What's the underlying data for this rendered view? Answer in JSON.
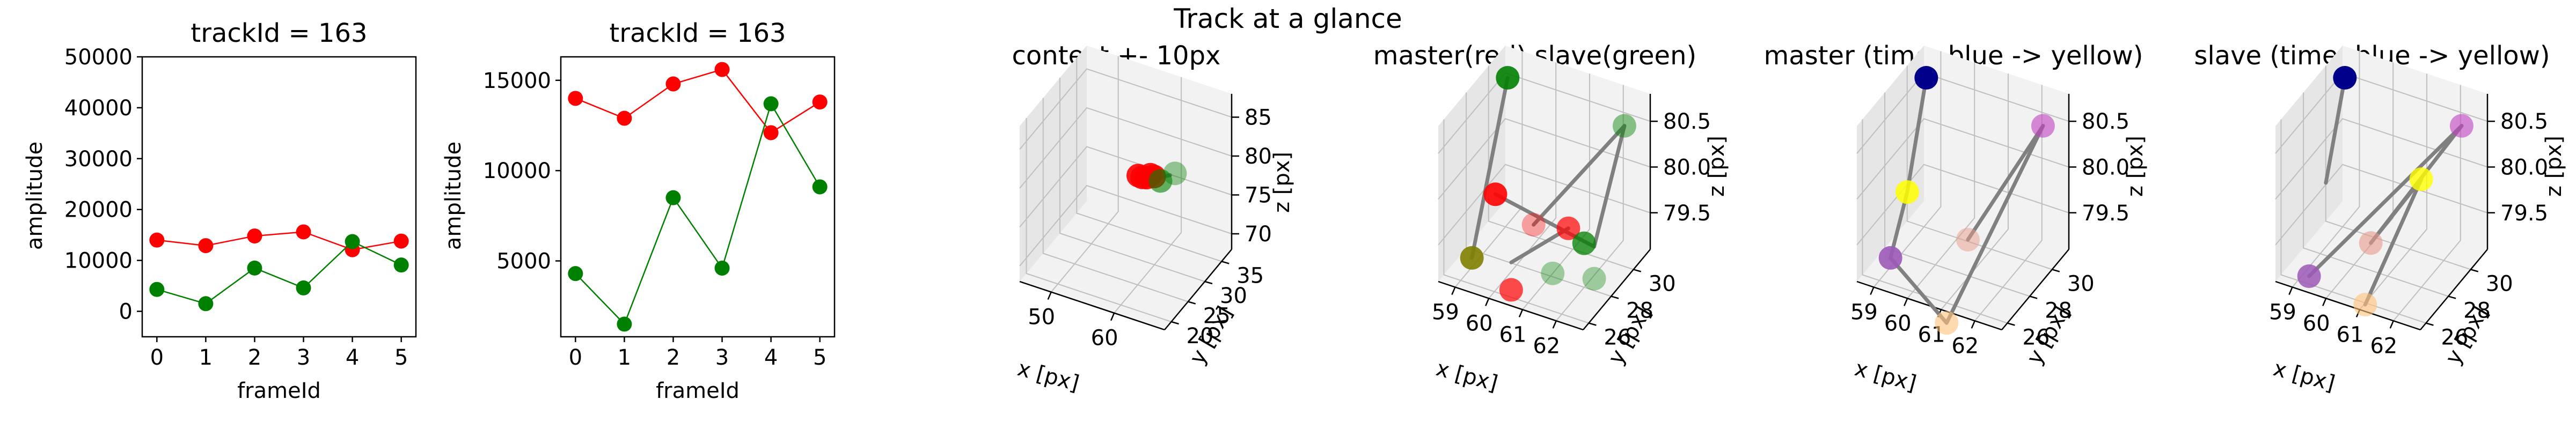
{
  "figure": {
    "title": "Track at a glance"
  },
  "colors": {
    "master": "#ff0000",
    "slave": "#008000",
    "link": "#808080",
    "pane": "#f2f2f2",
    "pane_dark": "#e6e6e6"
  },
  "chart_data": [
    {
      "type": "line",
      "title": "trackId = 163",
      "xlabel": "frameId",
      "ylabel": "amplitude",
      "x": [
        0,
        1,
        2,
        3,
        4,
        5
      ],
      "xticks": [
        "0",
        "1",
        "2",
        "3",
        "4",
        "5"
      ],
      "yticks": [
        "0",
        "10000",
        "20000",
        "30000",
        "40000",
        "50000"
      ],
      "xlim": [
        -0.3,
        5.3
      ],
      "ylim": [
        -5000,
        50000
      ],
      "series": [
        {
          "color": "#ff0000",
          "values": [
            14000,
            12900,
            14800,
            15600,
            12100,
            13800
          ]
        },
        {
          "color": "#008000",
          "values": [
            4300,
            1500,
            8500,
            4600,
            13700,
            9100
          ]
        }
      ]
    },
    {
      "type": "line",
      "title": "trackId = 163",
      "xlabel": "frameId",
      "ylabel": "amplitude",
      "x": [
        0,
        1,
        2,
        3,
        4,
        5
      ],
      "xticks": [
        "0",
        "1",
        "2",
        "3",
        "4",
        "5"
      ],
      "yticks": [
        "5000",
        "10000",
        "15000"
      ],
      "xlim": [
        -0.3,
        5.3
      ],
      "ylim": [
        800,
        16300
      ],
      "series": [
        {
          "color": "#ff0000",
          "values": [
            14000,
            12900,
            14800,
            15600,
            12100,
            13800
          ]
        },
        {
          "color": "#008000",
          "values": [
            4300,
            1500,
            8500,
            4600,
            13700,
            9100
          ]
        }
      ]
    },
    {
      "type": "scatter3d",
      "title": "context +- 10px",
      "xlabel": "x [px]",
      "ylabel": "y [px]",
      "zlabel": "z [px]",
      "xticks": [
        "50",
        "60"
      ],
      "yticks": [
        "20",
        "25",
        "30",
        "35"
      ],
      "zticks": [
        "70",
        "75",
        "80",
        "85"
      ],
      "xlim": [
        45,
        68
      ],
      "ylim": [
        18,
        38
      ],
      "zlim": [
        68,
        88
      ],
      "links": [
        {
          "from": [
            59.0,
            28.5,
            80.05
          ],
          "to": [
            61.0,
            29.0,
            79.9
          ]
        },
        {
          "from": [
            61.0,
            29.0,
            79.9
          ],
          "to": [
            62.5,
            30.0,
            80.2
          ]
        }
      ],
      "points": [
        {
          "x": 58.5,
          "y": 28.0,
          "z": 80.1,
          "color": "#ff0000",
          "alpha": 0.9
        },
        {
          "x": 59.0,
          "y": 28.2,
          "z": 79.9,
          "color": "#ff0000",
          "alpha": 0.9
        },
        {
          "x": 60.0,
          "y": 28.8,
          "z": 80.2,
          "color": "#ff0000",
          "alpha": 0.9
        },
        {
          "x": 60.5,
          "y": 29.0,
          "z": 80.0,
          "color": "#ff0000",
          "alpha": 0.9
        },
        {
          "x": 59.5,
          "y": 28.6,
          "z": 79.8,
          "color": "#ff0000",
          "alpha": 0.9
        },
        {
          "x": 61.5,
          "y": 29.0,
          "z": 79.7,
          "color": "#008000",
          "alpha": 0.6
        },
        {
          "x": 63.0,
          "y": 30.5,
          "z": 80.3,
          "color": "#008000",
          "alpha": 0.4
        }
      ]
    },
    {
      "type": "scatter3d",
      "title": "master(red) slave(green)",
      "xlabel": "x [px]",
      "ylabel": "y [px]",
      "zlabel": "z [px]",
      "xticks": [
        "59",
        "60",
        "61",
        "62"
      ],
      "yticks": [
        "26",
        "28",
        "30"
      ],
      "zticks": [
        "79.5",
        "80.0",
        "80.5"
      ],
      "xlim": [
        58.5,
        62.8
      ],
      "ylim": [
        25.5,
        31.5
      ],
      "zlim": [
        79.1,
        80.8
      ],
      "links": [
        {
          "from": [
            59.0,
            30.2,
            80.7
          ],
          "to": [
            59.0,
            27.0,
            79.2
          ]
        },
        {
          "from": [
            59.2,
            28.5,
            79.7
          ],
          "to": [
            61.8,
            29.5,
            79.3
          ]
        },
        {
          "from": [
            61.8,
            29.5,
            79.3
          ],
          "to": [
            62.2,
            31.0,
            80.45
          ]
        },
        {
          "from": [
            60.5,
            28.0,
            79.6
          ],
          "to": [
            62.2,
            31.0,
            80.45
          ]
        },
        {
          "from": [
            60.0,
            27.5,
            79.2
          ],
          "to": [
            61.2,
            29.0,
            79.5
          ]
        }
      ],
      "points": [
        {
          "x": 59.0,
          "y": 30.2,
          "z": 80.7,
          "color": "#008000",
          "alpha": 0.9
        },
        {
          "x": 59.2,
          "y": 28.5,
          "z": 79.7,
          "color": "#ff0000",
          "alpha": 0.9
        },
        {
          "x": 59.0,
          "y": 27.0,
          "z": 79.2,
          "color": "#808000",
          "alpha": 0.9
        },
        {
          "x": 60.0,
          "y": 27.5,
          "z": 78.9,
          "color": "#ff0000",
          "alpha": 0.7
        },
        {
          "x": 60.5,
          "y": 28.0,
          "z": 79.6,
          "color": "#ff0000",
          "alpha": 0.35
        },
        {
          "x": 61.0,
          "y": 28.2,
          "z": 79.1,
          "color": "#008000",
          "alpha": 0.35
        },
        {
          "x": 61.2,
          "y": 29.0,
          "z": 79.5,
          "color": "#ff0000",
          "alpha": 0.7
        },
        {
          "x": 61.5,
          "y": 29.5,
          "z": 79.3,
          "color": "#008000",
          "alpha": 0.75
        },
        {
          "x": 61.8,
          "y": 29.5,
          "z": 78.95,
          "color": "#008000",
          "alpha": 0.35
        },
        {
          "x": 62.2,
          "y": 31.0,
          "z": 80.45,
          "color": "#008000",
          "alpha": 0.45
        }
      ]
    },
    {
      "type": "scatter3d",
      "title": "master (time: blue -> yellow)",
      "xlabel": "x [px]",
      "ylabel": "y [px]",
      "zlabel": "z [px]",
      "xticks": [
        "59",
        "60",
        "61",
        "62"
      ],
      "yticks": [
        "26",
        "28",
        "30"
      ],
      "zticks": [
        "79.5",
        "80.0",
        "80.5"
      ],
      "xlim": [
        58.5,
        62.8
      ],
      "ylim": [
        25.5,
        31.5
      ],
      "zlim": [
        79.1,
        80.8
      ],
      "links": [
        {
          "from": [
            59.0,
            30.2,
            80.7
          ],
          "to": [
            59.0,
            28.5,
            79.7
          ]
        },
        {
          "from": [
            59.0,
            28.5,
            79.7
          ],
          "to": [
            59.0,
            27.0,
            79.2
          ]
        },
        {
          "from": [
            59.0,
            27.0,
            79.2
          ],
          "to": [
            60.5,
            27.5,
            78.6
          ]
        },
        {
          "from": [
            60.5,
            27.5,
            78.6
          ],
          "to": [
            62.2,
            31.0,
            80.45
          ]
        },
        {
          "from": [
            62.2,
            31.0,
            80.45
          ],
          "to": [
            60.8,
            28.5,
            79.4
          ]
        }
      ],
      "points": [
        {
          "x": 59.0,
          "y": 30.2,
          "z": 80.7,
          "color": "#00008b",
          "alpha": 1.0
        },
        {
          "x": 59.0,
          "y": 28.5,
          "z": 79.7,
          "color": "#ffff00",
          "alpha": 0.85
        },
        {
          "x": 59.0,
          "y": 27.0,
          "z": 79.2,
          "color": "#9b59b6",
          "alpha": 0.9
        },
        {
          "x": 60.5,
          "y": 27.5,
          "z": 78.6,
          "color": "#ffc27a",
          "alpha": 0.6
        },
        {
          "x": 62.2,
          "y": 31.0,
          "z": 80.45,
          "color": "#c040c0",
          "alpha": 0.6
        },
        {
          "x": 60.8,
          "y": 28.5,
          "z": 79.4,
          "color": "#e89a8a",
          "alpha": 0.5
        }
      ]
    },
    {
      "type": "scatter3d",
      "title": "slave (time: blue -> yellow)",
      "xlabel": "x [px]",
      "ylabel": "y [px]",
      "zlabel": "z [px]",
      "xticks": [
        "59",
        "60",
        "61",
        "62"
      ],
      "yticks": [
        "26",
        "28",
        "30"
      ],
      "zticks": [
        "79.5",
        "80.0",
        "80.5"
      ],
      "xlim": [
        58.5,
        62.8
      ],
      "ylim": [
        25.5,
        31.5
      ],
      "zlim": [
        79.1,
        80.8
      ],
      "links": [
        {
          "from": [
            59.0,
            30.2,
            80.7
          ],
          "to": [
            59.0,
            28.5,
            79.8
          ]
        },
        {
          "from": [
            59.0,
            27.0,
            79.0
          ],
          "to": [
            62.2,
            31.0,
            80.45
          ]
        },
        {
          "from": [
            62.2,
            31.0,
            80.45
          ],
          "to": [
            60.5,
            28.0,
            79.4
          ]
        },
        {
          "from": [
            60.5,
            28.0,
            79.4
          ],
          "to": [
            61.5,
            29.5,
            80.0
          ]
        },
        {
          "from": [
            61.5,
            29.5,
            80.0
          ],
          "to": [
            60.5,
            27.5,
            78.8
          ]
        }
      ],
      "points": [
        {
          "x": 59.0,
          "y": 30.2,
          "z": 80.7,
          "color": "#00008b",
          "alpha": 1.0
        },
        {
          "x": 59.0,
          "y": 27.0,
          "z": 79.0,
          "color": "#9b59b6",
          "alpha": 0.85
        },
        {
          "x": 62.2,
          "y": 31.0,
          "z": 80.45,
          "color": "#c040c0",
          "alpha": 0.6
        },
        {
          "x": 61.5,
          "y": 29.5,
          "z": 80.0,
          "color": "#ffff00",
          "alpha": 0.8
        },
        {
          "x": 60.5,
          "y": 28.0,
          "z": 79.4,
          "color": "#e89a8a",
          "alpha": 0.6
        },
        {
          "x": 60.5,
          "y": 27.5,
          "z": 78.8,
          "color": "#ffc27a",
          "alpha": 0.6
        }
      ]
    }
  ]
}
